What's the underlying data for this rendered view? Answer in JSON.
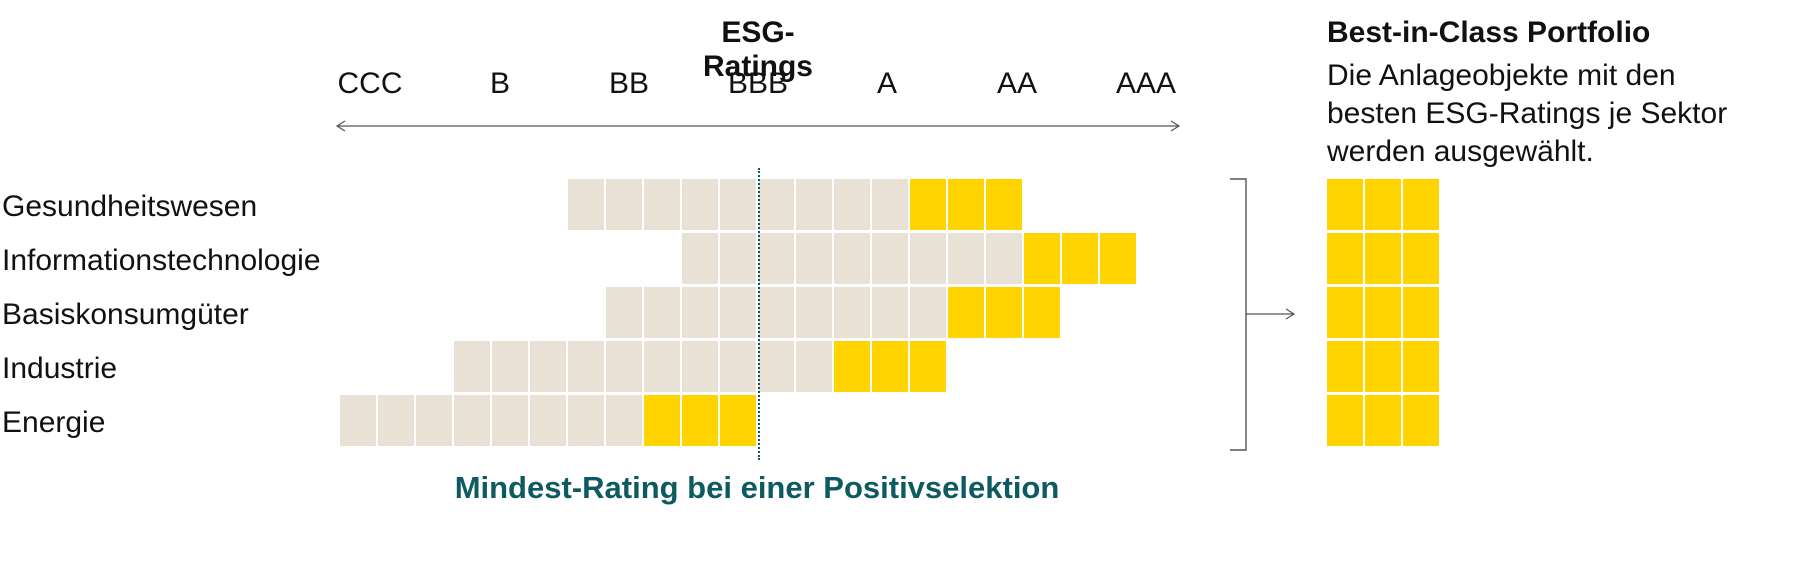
{
  "title": "ESG-Ratings",
  "ratings": [
    "CCC",
    "B",
    "BB",
    "BBB",
    "A",
    "AA",
    "AAA"
  ],
  "sectors": [
    {
      "name": "Gesundheitswesen",
      "grey": 9,
      "yellow": 3
    },
    {
      "name": "Informationstechnologie",
      "grey": 9,
      "yellow": 3
    },
    {
      "name": "Basiskonsumgüter",
      "grey": 9,
      "yellow": 3
    },
    {
      "name": "Industrie",
      "grey": 10,
      "yellow": 3
    },
    {
      "name": "Energie",
      "grey": 8,
      "yellow": 3
    }
  ],
  "footnote": "Mindest-Rating bei einer Positivselektion",
  "portfolio": {
    "title": "Best-in-Class Portfolio",
    "description": "Die Anlageobjekte mit den besten ESG-Ratings je Sektor werden ausgewählt."
  },
  "colors": {
    "excluded": "#e9e1d6",
    "selected": "#ffd400",
    "accent": "#0e5a61"
  }
}
